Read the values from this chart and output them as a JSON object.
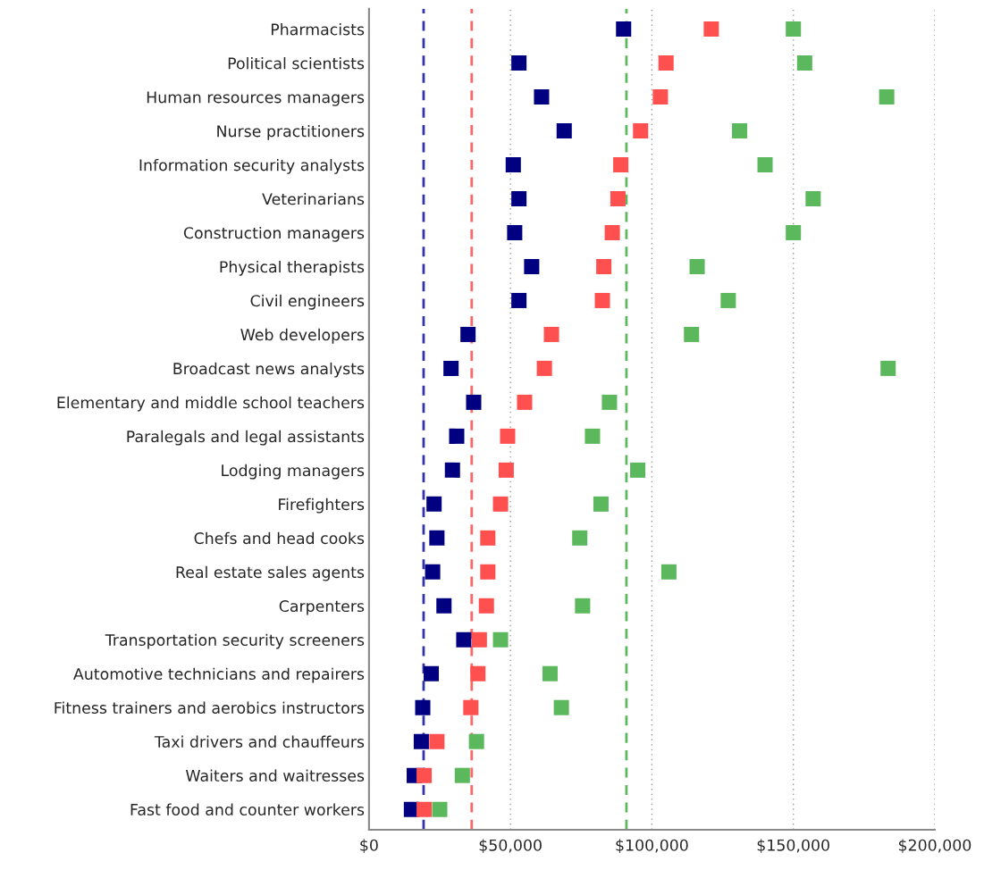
{
  "chart_data": {
    "type": "scatter",
    "orientation": "horizontal",
    "marker": "square",
    "grid": "x",
    "legend": false,
    "categories": [
      "Pharmacists",
      "Political scientists",
      "Human resources managers",
      "Nurse practitioners",
      "Information security analysts",
      "Veterinarians",
      "Construction managers",
      "Physical therapists",
      "Civil engineers",
      "Web developers",
      "Broadcast news analysts",
      "Elementary and middle school teachers",
      "Paralegals and legal assistants",
      "Lodging managers",
      "Firefighters",
      "Chefs and head cooks",
      "Real estate sales agents",
      "Carpenters",
      "Transportation security screeners",
      "Automotive technicians and repairers",
      "Fitness trainers and aerobics instructors",
      "Taxi drivers and chauffeurs",
      "Waiters and waitresses",
      "Fast food and counter workers"
    ],
    "series": [
      {
        "color": "#000080",
        "values": [
          90000,
          53000,
          61000,
          69000,
          51000,
          53000,
          51500,
          57500,
          53000,
          35000,
          29000,
          37000,
          31000,
          29500,
          23000,
          24000,
          22500,
          26500,
          33500,
          22000,
          19000,
          18500,
          16000,
          15000
        ]
      },
      {
        "color": "#ff5050",
        "values": [
          121000,
          105000,
          103000,
          96000,
          89000,
          88000,
          86000,
          83000,
          82500,
          64500,
          62000,
          55000,
          49000,
          48500,
          46500,
          42000,
          42000,
          41500,
          39000,
          38500,
          36000,
          24000,
          19500,
          19500
        ]
      },
      {
        "color": "#5cb85c",
        "values": [
          150000,
          154000,
          183000,
          131000,
          140000,
          157000,
          150000,
          116000,
          127000,
          114000,
          183500,
          85000,
          79000,
          95000,
          82000,
          74500,
          106000,
          75500,
          46500,
          64000,
          68000,
          38000,
          33000,
          25000
        ]
      }
    ],
    "ref_lines": [
      {
        "axis": "x",
        "value": 19300,
        "color": "#3333aa",
        "line_style": "dashed"
      },
      {
        "axis": "x",
        "value": 36300,
        "color": "#ff6666",
        "line_style": "dashed"
      },
      {
        "axis": "x",
        "value": 91000,
        "color": "#5cb85c",
        "line_style": "dashed"
      }
    ],
    "xlim": [
      0,
      200000
    ],
    "xticks": [
      {
        "value": 0,
        "label": "$0"
      },
      {
        "value": 50000,
        "label": "$50,000"
      },
      {
        "value": 100000,
        "label": "$100,000"
      },
      {
        "value": 150000,
        "label": "$150,000"
      },
      {
        "value": 200000,
        "label": "$200,000"
      }
    ]
  }
}
